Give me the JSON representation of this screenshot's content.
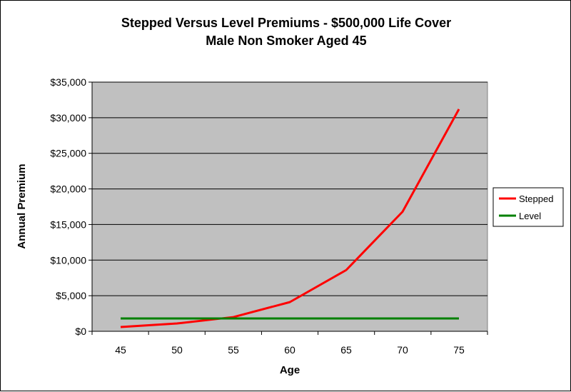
{
  "chart_data": {
    "type": "line",
    "title_lines": [
      "Stepped Versus Level Premiums - $500,000 Life Cover",
      "Male Non Smoker Aged 45"
    ],
    "xlabel": "Age",
    "ylabel": "Annual Premium",
    "x": [
      45,
      50,
      55,
      60,
      65,
      70,
      75
    ],
    "x_tick_labels": [
      "45",
      "50",
      "55",
      "60",
      "65",
      "70",
      "75"
    ],
    "y_tick_labels": [
      "$0",
      "$5,000",
      "$10,000",
      "$15,000",
      "$20,000",
      "$25,000",
      "$30,000",
      "$35,000"
    ],
    "ylim": [
      0,
      35000
    ],
    "y_tick_step": 5000,
    "grid": "horizontal",
    "plot_background": "#c0c0c0",
    "legend_position": "right",
    "series": [
      {
        "name": "Stepped",
        "color": "#ff0000",
        "values": [
          600,
          1100,
          2000,
          4100,
          8600,
          16800,
          31200
        ]
      },
      {
        "name": "Level",
        "color": "#008000",
        "values": [
          1800,
          1800,
          1800,
          1800,
          1800,
          1800,
          1800
        ]
      }
    ]
  }
}
